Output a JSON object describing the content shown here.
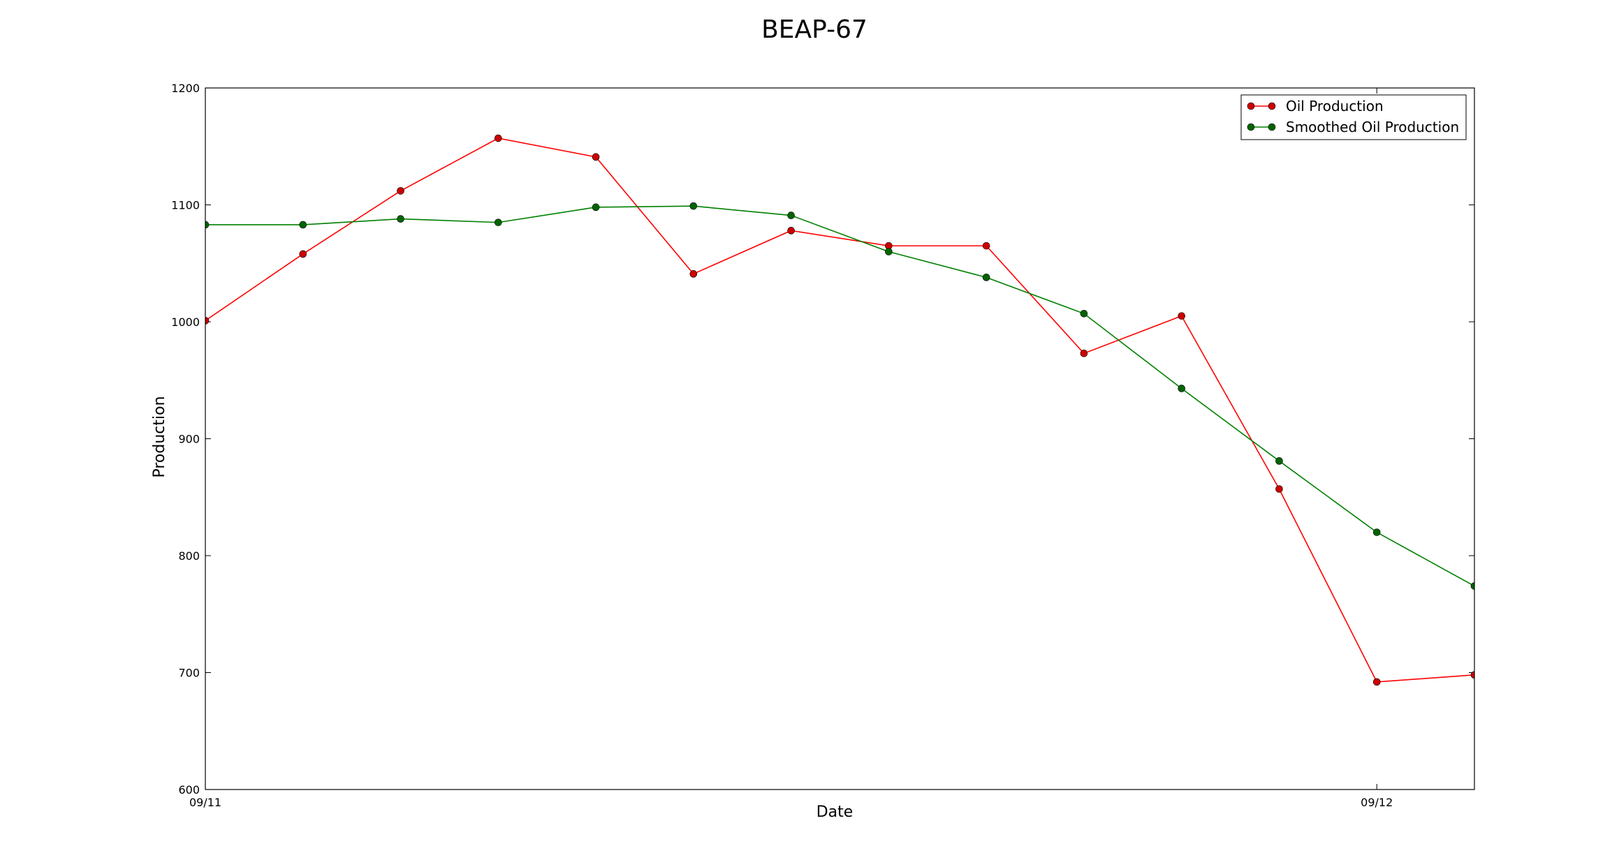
{
  "chart_data": {
    "type": "line",
    "title": "BEAP-67",
    "xlabel": "Date",
    "ylabel": "Production",
    "ylim": [
      600,
      1200
    ],
    "yticks": [
      600,
      700,
      800,
      900,
      1000,
      1100,
      1200
    ],
    "xlim": [
      "1980-09-11",
      "1980-09-12"
    ],
    "xticks": [
      {
        "label": "09/11",
        "x": 0
      },
      {
        "label": "09/12",
        "x": 12
      }
    ],
    "grid": false,
    "legend_position": "top-right",
    "series": [
      {
        "name": "Oil Production",
        "color": "#ff0000",
        "marker_color": "#cc0000",
        "x": [
          0,
          1,
          2,
          3,
          4,
          5,
          6,
          7,
          8,
          9,
          10,
          11,
          12,
          13
        ],
        "values": [
          1001,
          1058,
          1112,
          1157,
          1141,
          1041,
          1078,
          1065,
          1065,
          973,
          1005,
          857,
          692,
          698
        ]
      },
      {
        "name": "Smoothed Oil Production",
        "color": "#008000",
        "marker_color": "#006400",
        "x": [
          0,
          1,
          2,
          3,
          4,
          5,
          6,
          7,
          8,
          9,
          10,
          11,
          12,
          13
        ],
        "values": [
          1083,
          1083,
          1088,
          1085,
          1098,
          1099,
          1091,
          1060,
          1038,
          1007,
          943,
          881,
          820,
          774
        ]
      }
    ]
  }
}
